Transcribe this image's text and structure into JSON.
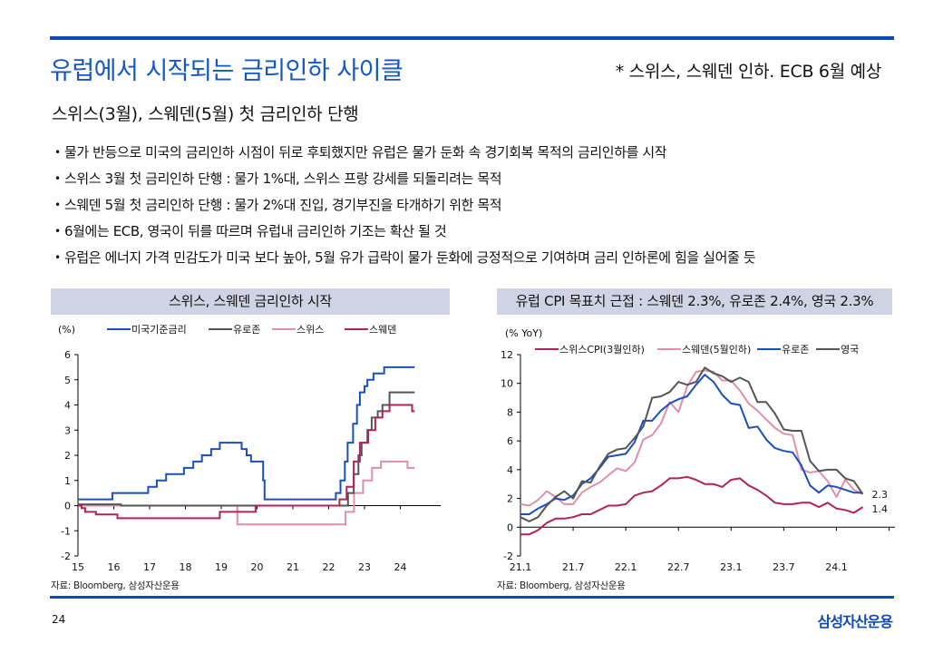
{
  "header": {
    "title": "유럽에서 시작되는 금리인하 사이클",
    "note": "* 스위스, 스웨덴 인하. ECB 6월 예상",
    "subtitle": "스위스(3월), 스웨덴(5월) 첫 금리인하 단행"
  },
  "bullets": [
    "물가 반등으로 미국의 금리인하 시점이 뒤로 후퇴했지만 유럽은 물가 둔화 속 경기회복 목적의 금리인하를 시작",
    "스위스 3월 첫 금리인하 단행 : 물가 1%대, 스위스 프랑 강세를 되돌리려는 목적",
    "스웨덴 5월 첫 금리인하 단행 : 물가 2%대 진입, 경기부진을 타개하기 위한 목적",
    "6월에는 ECB, 영국이 뒤를 따르며 유럽내 금리인하 기조는 확산 될 것",
    "유럽은 에너지 가격 민감도가 미국 보다 높아, 5월 유가 급락이 물가 둔화에 긍정적으로 기여하며 금리 인하론에 힘을 실어줄 듯"
  ],
  "bullet_glyph": "•",
  "footer": {
    "page_number": "24",
    "logo": "삼성자산운용"
  },
  "chart_data": [
    {
      "type": "line",
      "title": "스위스, 스웨덴 금리인하 시작",
      "ylabel": "(%)",
      "xlabel": "",
      "source": "자료: Bloomberg, 삼성자산운용",
      "xlim": [
        15,
        25
      ],
      "ylim": [
        -2,
        6
      ],
      "yticks": [
        -2,
        -1,
        0,
        1,
        2,
        3,
        4,
        5,
        6
      ],
      "xticks": [
        15,
        16,
        17,
        18,
        19,
        20,
        21,
        22,
        23,
        24
      ],
      "xtick_labels": [
        "15",
        "16",
        "17",
        "18",
        "19",
        "20",
        "21",
        "22",
        "23",
        "24"
      ],
      "legend_position": "top",
      "step": true,
      "series": [
        {
          "name": "미국기준금리",
          "color": "#1a4fbf",
          "points": [
            [
              15.0,
              0.25
            ],
            [
              15.96,
              0.25
            ],
            [
              15.96,
              0.5
            ],
            [
              16.96,
              0.5
            ],
            [
              16.96,
              0.75
            ],
            [
              17.2,
              0.75
            ],
            [
              17.2,
              1.0
            ],
            [
              17.46,
              1.0
            ],
            [
              17.46,
              1.25
            ],
            [
              17.96,
              1.25
            ],
            [
              17.96,
              1.5
            ],
            [
              18.22,
              1.5
            ],
            [
              18.22,
              1.75
            ],
            [
              18.46,
              1.75
            ],
            [
              18.46,
              2.0
            ],
            [
              18.72,
              2.0
            ],
            [
              18.72,
              2.25
            ],
            [
              18.96,
              2.25
            ],
            [
              18.96,
              2.5
            ],
            [
              19.57,
              2.5
            ],
            [
              19.57,
              2.25
            ],
            [
              19.71,
              2.25
            ],
            [
              19.71,
              2.0
            ],
            [
              19.83,
              2.0
            ],
            [
              19.83,
              1.75
            ],
            [
              20.17,
              1.75
            ],
            [
              20.17,
              1.0
            ],
            [
              20.21,
              1.0
            ],
            [
              20.21,
              0.25
            ],
            [
              22.2,
              0.25
            ],
            [
              22.2,
              0.5
            ],
            [
              22.33,
              0.5
            ],
            [
              22.33,
              1.0
            ],
            [
              22.45,
              1.0
            ],
            [
              22.45,
              1.75
            ],
            [
              22.53,
              1.75
            ],
            [
              22.53,
              2.5
            ],
            [
              22.68,
              2.5
            ],
            [
              22.68,
              3.25
            ],
            [
              22.79,
              3.25
            ],
            [
              22.79,
              4.0
            ],
            [
              22.87,
              4.0
            ],
            [
              22.87,
              4.5
            ],
            [
              23.0,
              4.5
            ],
            [
              23.0,
              4.75
            ],
            [
              23.08,
              4.75
            ],
            [
              23.08,
              5.0
            ],
            [
              23.25,
              5.0
            ],
            [
              23.25,
              5.25
            ],
            [
              23.55,
              5.25
            ],
            [
              23.55,
              5.5
            ],
            [
              24.4,
              5.5
            ]
          ]
        },
        {
          "name": "유로존",
          "color": "#555555",
          "points": [
            [
              15.0,
              0.05
            ],
            [
              16.2,
              0.05
            ],
            [
              16.2,
              0.0
            ],
            [
              22.54,
              0.0
            ],
            [
              22.54,
              0.5
            ],
            [
              22.7,
              0.5
            ],
            [
              22.7,
              1.25
            ],
            [
              22.83,
              1.25
            ],
            [
              22.83,
              2.0
            ],
            [
              22.92,
              2.0
            ],
            [
              22.92,
              2.5
            ],
            [
              23.08,
              2.5
            ],
            [
              23.08,
              3.0
            ],
            [
              23.2,
              3.0
            ],
            [
              23.2,
              3.5
            ],
            [
              23.37,
              3.5
            ],
            [
              23.37,
              3.75
            ],
            [
              23.5,
              3.75
            ],
            [
              23.5,
              4.0
            ],
            [
              23.7,
              4.0
            ],
            [
              23.7,
              4.25
            ],
            [
              23.7,
              4.5
            ],
            [
              24.4,
              4.5
            ]
          ]
        },
        {
          "name": "스위스",
          "color": "#e08fa6",
          "points": [
            [
              15.0,
              0.0
            ],
            [
              19.45,
              0.0
            ],
            [
              19.45,
              -0.75
            ],
            [
              22.47,
              -0.75
            ],
            [
              22.47,
              -0.25
            ],
            [
              22.71,
              -0.25
            ],
            [
              22.71,
              0.5
            ],
            [
              22.96,
              0.5
            ],
            [
              22.96,
              1.0
            ],
            [
              23.21,
              1.0
            ],
            [
              23.21,
              1.5
            ],
            [
              23.46,
              1.5
            ],
            [
              23.46,
              1.75
            ],
            [
              24.2,
              1.75
            ],
            [
              24.2,
              1.5
            ],
            [
              24.4,
              1.5
            ]
          ]
        },
        {
          "name": "스웨덴",
          "color": "#b0225a",
          "points": [
            [
              15.0,
              0.0
            ],
            [
              15.1,
              0.0
            ],
            [
              15.1,
              -0.1
            ],
            [
              15.2,
              -0.1
            ],
            [
              15.2,
              -0.25
            ],
            [
              15.5,
              -0.25
            ],
            [
              15.5,
              -0.35
            ],
            [
              16.1,
              -0.35
            ],
            [
              16.1,
              -0.5
            ],
            [
              18.96,
              -0.5
            ],
            [
              18.96,
              -0.25
            ],
            [
              19.96,
              -0.25
            ],
            [
              19.96,
              0.0
            ],
            [
              22.3,
              0.0
            ],
            [
              22.3,
              0.25
            ],
            [
              22.5,
              0.25
            ],
            [
              22.5,
              0.75
            ],
            [
              22.7,
              0.75
            ],
            [
              22.7,
              1.75
            ],
            [
              22.87,
              1.75
            ],
            [
              22.87,
              2.5
            ],
            [
              23.1,
              2.5
            ],
            [
              23.1,
              3.0
            ],
            [
              23.3,
              3.0
            ],
            [
              23.3,
              3.5
            ],
            [
              23.5,
              3.5
            ],
            [
              23.5,
              3.75
            ],
            [
              23.7,
              3.75
            ],
            [
              23.7,
              4.0
            ],
            [
              24.33,
              4.0
            ],
            [
              24.33,
              3.75
            ],
            [
              24.4,
              3.75
            ]
          ]
        }
      ]
    },
    {
      "type": "line",
      "title": "유럽 CPI 목표치 근접 : 스웨덴 2.3%, 유로존 2.4%, 영국 2.3%",
      "ylabel": "(% YoY)",
      "xlabel": "",
      "source": "자료: Bloomberg, 삼성자산운용",
      "ylim": [
        -2,
        12
      ],
      "yticks": [
        -2,
        0,
        2,
        4,
        6,
        8,
        10,
        12
      ],
      "x_start_label": "21.1",
      "x_frequency": "monthly",
      "xtick_labels": [
        "21.1",
        "21.7",
        "22.1",
        "22.7",
        "23.1",
        "23.7",
        "24.1"
      ],
      "legend_position": "top",
      "end_labels": [
        "2.3",
        "1.4"
      ],
      "series": [
        {
          "name": "스위스CPI(3월인하)",
          "color": "#b0225a",
          "values": [
            -0.5,
            -0.5,
            -0.2,
            0.3,
            0.6,
            0.6,
            0.7,
            0.9,
            0.9,
            1.2,
            1.5,
            1.5,
            1.6,
            2.2,
            2.4,
            2.5,
            2.9,
            3.4,
            3.4,
            3.5,
            3.3,
            3.0,
            3.0,
            2.8,
            3.3,
            3.4,
            2.9,
            2.6,
            2.2,
            1.7,
            1.6,
            1.6,
            1.7,
            1.7,
            1.4,
            1.7,
            1.3,
            1.2,
            1.0,
            1.4
          ]
        },
        {
          "name": "스웨덴(5월인하)",
          "color": "#e08fa6",
          "values": [
            1.6,
            1.5,
            1.9,
            2.5,
            2.1,
            1.6,
            1.6,
            2.4,
            2.8,
            3.1,
            3.6,
            4.1,
            3.9,
            4.5,
            6.1,
            6.4,
            7.2,
            8.7,
            8.0,
            9.8,
            10.8,
            10.9,
            10.8,
            10.2,
            10.2,
            9.5,
            8.6,
            8.1,
            7.5,
            6.9,
            6.5,
            6.4,
            4.0,
            3.8,
            3.9,
            3.2,
            2.1,
            3.3,
            2.6,
            2.3
          ]
        },
        {
          "name": "유로존",
          "color": "#1a4fbf",
          "values": [
            0.9,
            0.9,
            1.3,
            1.6,
            2.0,
            1.9,
            2.2,
            3.0,
            3.4,
            4.1,
            4.9,
            5.0,
            5.1,
            5.9,
            7.4,
            7.4,
            8.1,
            8.6,
            8.9,
            9.1,
            9.9,
            10.6,
            10.1,
            9.2,
            8.6,
            8.5,
            6.9,
            7.0,
            6.1,
            5.5,
            5.3,
            5.2,
            4.3,
            2.9,
            2.4,
            2.9,
            2.8,
            2.6,
            2.4,
            2.4
          ]
        },
        {
          "name": "영국",
          "color": "#555555",
          "values": [
            0.7,
            0.4,
            0.7,
            1.5,
            2.1,
            2.5,
            2.0,
            3.2,
            3.1,
            4.2,
            5.1,
            5.4,
            5.5,
            6.2,
            7.0,
            9.0,
            9.1,
            9.4,
            10.1,
            9.9,
            10.1,
            11.1,
            10.7,
            10.5,
            10.1,
            10.4,
            10.1,
            8.7,
            8.7,
            7.9,
            6.8,
            6.7,
            6.7,
            4.6,
            3.9,
            4.0,
            4.0,
            3.4,
            3.2,
            2.3
          ]
        }
      ]
    }
  ]
}
